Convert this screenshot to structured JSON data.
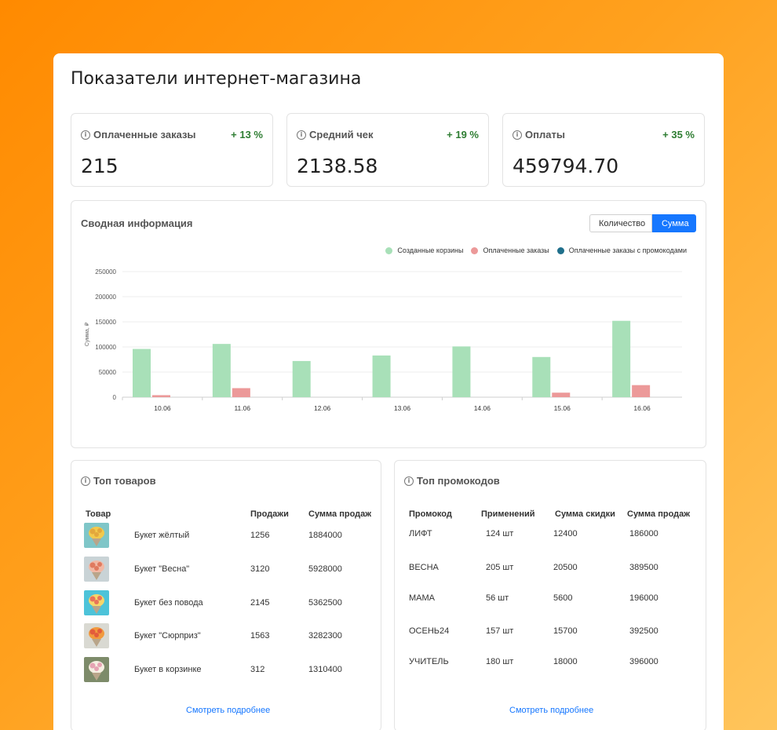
{
  "page_title": "Показатели интернет-магазина",
  "kpis": [
    {
      "label": "Оплаченные заказы",
      "delta": "+ 13 %",
      "value": "215"
    },
    {
      "label": "Средний чек",
      "delta": "+ 19 %",
      "value": "2138.58"
    },
    {
      "label": "Оплаты",
      "delta": "+ 35 %",
      "value": "459794.70"
    }
  ],
  "summary": {
    "title": "Сводная информация",
    "toggle": {
      "count": "Количество",
      "sum": "Сумма"
    },
    "legend": [
      {
        "name": "Созданные корзины",
        "color": "#a8e0b8"
      },
      {
        "name": "Оплаченные заказы",
        "color": "#ec9999"
      },
      {
        "name": "Оплаченные заказы с промокодами",
        "color": "#1f6f8b"
      }
    ]
  },
  "chart_data": {
    "type": "bar",
    "ylabel": "Сумма, ₽",
    "ylim": [
      0,
      250000
    ],
    "yticks": [
      "0",
      "50000",
      "100000",
      "150000",
      "200000",
      "250000"
    ],
    "categories": [
      "10.06",
      "11.06",
      "12.06",
      "13.06",
      "14.06",
      "15.06",
      "16.06"
    ],
    "series": [
      {
        "name": "Созданные корзины",
        "color": "#a8e0b8",
        "values": [
          96000,
          106000,
          72000,
          83000,
          101000,
          80000,
          152000
        ]
      },
      {
        "name": "Оплаченные заказы",
        "color": "#ec9999",
        "values": [
          4000,
          18000,
          0,
          0,
          0,
          9000,
          24000
        ]
      },
      {
        "name": "Оплаченные заказы с промокодами",
        "color": "#1f6f8b",
        "values": [
          0,
          0,
          0,
          0,
          0,
          0,
          0
        ]
      }
    ],
    "grid": true,
    "legend_position": "top-right"
  },
  "top_products": {
    "title": "Топ товаров",
    "headers": {
      "product": "Товар",
      "sales": "Продажи",
      "sum": "Сумма продаж"
    },
    "rows": [
      {
        "name": "Букет жёлтый",
        "sales": "1256",
        "sum": "1884000",
        "thumb": "bouquet-yellow"
      },
      {
        "name": "Букет \"Весна\"",
        "sales": "3120",
        "sum": "5928000",
        "thumb": "bouquet-spring"
      },
      {
        "name": "Букет без повода",
        "sales": "2145",
        "sum": "5362500",
        "thumb": "bouquet-casual"
      },
      {
        "name": "Букет \"Сюрприз\"",
        "sales": "1563",
        "sum": "3282300",
        "thumb": "bouquet-surprise"
      },
      {
        "name": "Букет в корзинке",
        "sales": "312",
        "sum": "1310400",
        "thumb": "bouquet-basket"
      }
    ],
    "more": "Смотреть подробнее"
  },
  "top_promos": {
    "title": "Топ промокодов",
    "headers": {
      "code": "Промокод",
      "uses": "Применений",
      "discount": "Сумма скидки",
      "sum": "Сумма продаж"
    },
    "rows": [
      {
        "code": "ЛИФТ",
        "uses": "124 шт",
        "discount": "12400",
        "sum": "186000"
      },
      {
        "code": "ВЕСНА",
        "uses": "205 шт",
        "discount": "20500",
        "sum": "389500"
      },
      {
        "code": "МАМА",
        "uses": "56 шт",
        "discount": "5600",
        "sum": "196000"
      },
      {
        "code": "ОСЕНЬ24",
        "uses": "157 шт",
        "discount": "15700",
        "sum": "392500"
      },
      {
        "code": "УЧИТЕЛЬ",
        "uses": "180 шт",
        "discount": "18000",
        "sum": "396000"
      }
    ],
    "more": "Смотреть подробнее"
  }
}
